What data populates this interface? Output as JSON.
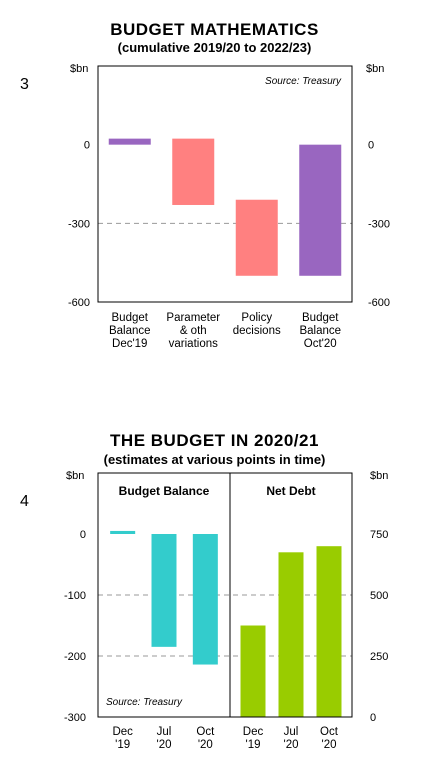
{
  "page_labels": {
    "chart1_number": "3",
    "chart2_number": "4"
  },
  "colors": {
    "purple": "#9966c0",
    "pink": "#ff8080",
    "teal": "#33cccc",
    "green": "#99cc00"
  },
  "chart_data": [
    {
      "type": "bar",
      "subtype": "waterfall",
      "title": "BUDGET MATHEMATICS",
      "subtitle": "(cumulative 2019/20 to 2022/23)",
      "ylabel_left": "$bn",
      "ylabel_right": "$bn",
      "source": "Source: Treasury",
      "ylim": [
        -600,
        300
      ],
      "yticks": [
        0,
        -300,
        -600
      ],
      "dashed_gridlines": [
        -300
      ],
      "categories": [
        [
          "Budget",
          "Balance",
          "Dec'19"
        ],
        [
          "Parameter",
          "& oth",
          "variations"
        ],
        [
          "Policy",
          "decisions"
        ],
        [
          "Budget",
          "Balance",
          "Oct'20"
        ]
      ],
      "bars": [
        {
          "from": 0,
          "to": 23,
          "color": "purple"
        },
        {
          "from": 23,
          "to": -230,
          "color": "pink"
        },
        {
          "from": -210,
          "to": -500,
          "color": "pink"
        },
        {
          "from": 0,
          "to": -500,
          "color": "purple"
        }
      ]
    },
    {
      "type": "bar",
      "title": "THE BUDGET IN 2020/21",
      "subtitle": "(estimates at various points in time)",
      "ylabel_left": "$bn",
      "ylabel_right": "$bn",
      "source": "Source: Treasury",
      "left_axis": {
        "ylim": [
          -300,
          0
        ],
        "yticks": [
          0,
          -100,
          -200,
          -300
        ]
      },
      "right_axis": {
        "ylim": [
          0,
          750
        ],
        "yticks": [
          750,
          500,
          250,
          0
        ]
      },
      "dashed_gridlines_left": [
        -100,
        -200
      ],
      "panels": [
        {
          "name": "Budget Balance",
          "axis": "left",
          "color": "teal",
          "categories": [
            [
              "Dec",
              "'19"
            ],
            [
              "Jul",
              "'20"
            ],
            [
              "Oct",
              "'20"
            ]
          ],
          "values": [
            5,
            -185,
            -214
          ]
        },
        {
          "name": "Net Debt",
          "axis": "right",
          "color": "green",
          "categories": [
            [
              "Dec",
              "'19"
            ],
            [
              "Jul",
              "'20"
            ],
            [
              "Oct",
              "'20"
            ]
          ],
          "values": [
            375,
            675,
            700
          ]
        }
      ]
    }
  ]
}
